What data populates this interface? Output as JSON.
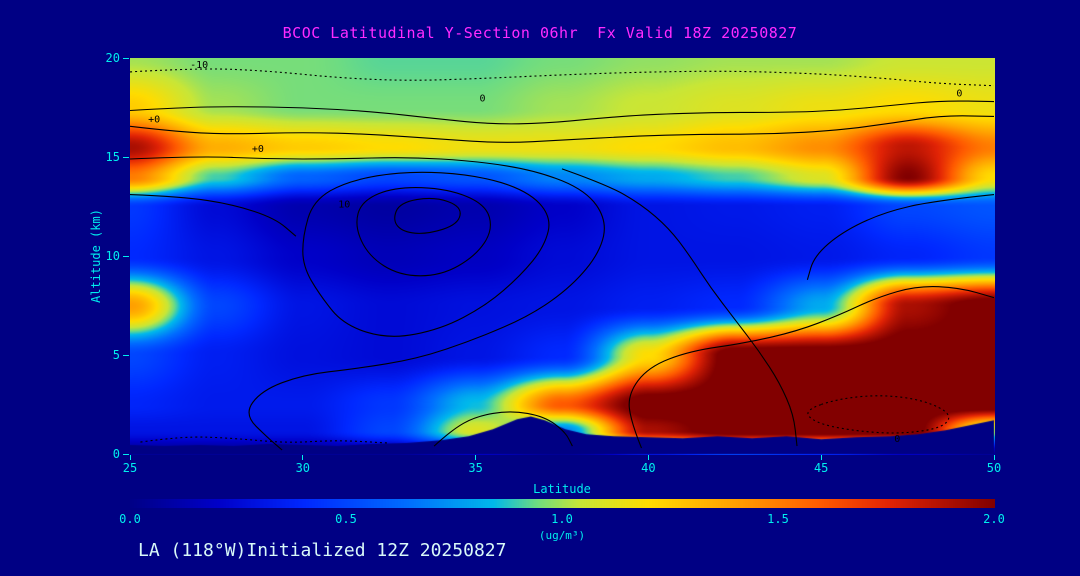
{
  "window": {
    "bg": "#000084"
  },
  "title": {
    "text": "BCOC Latitudinal Y-Section 06hr  Fx Valid 18Z 20250827",
    "color": "#ff2bff"
  },
  "footer": {
    "text": "LA (118°W)Initialized 12Z 20250827",
    "color": "#d8f8f8"
  },
  "axes": {
    "color": "#00eeee",
    "x": {
      "label": "Latitude",
      "range": [
        25,
        50
      ],
      "ticks": [
        25,
        30,
        35,
        40,
        45,
        50
      ]
    },
    "y": {
      "label": "Altitude (km)",
      "range": [
        0,
        20
      ],
      "ticks": [
        0,
        5,
        10,
        15,
        20
      ]
    }
  },
  "colorbar": {
    "range": [
      0.0,
      2.0
    ],
    "ticks": [
      0.0,
      0.5,
      1.0,
      1.5,
      2.0
    ],
    "unit": "(ug/m³)"
  },
  "chart_data": {
    "type": "heatmap",
    "title": "BCOC Latitudinal Y-Section 06hr  Fx Valid 18Z 20250827",
    "xlabel": "Latitude",
    "ylabel": "Altitude (km)",
    "xlim": [
      25,
      50
    ],
    "ylim": [
      0,
      20
    ],
    "vmax": 2.0,
    "x_lats": [
      25,
      27.5,
      30,
      32.5,
      35,
      37.5,
      40,
      42.5,
      45,
      47.5,
      50
    ],
    "y_alts": [
      0,
      1.2,
      2.5,
      5,
      7.5,
      10,
      12.5,
      14,
      15.5,
      17.5,
      20
    ],
    "values_ug_m3": [
      [
        0.05,
        0.05,
        0.05,
        0.05,
        0.2,
        0.05,
        0.3,
        0.5,
        0.4,
        0.2,
        0.05
      ],
      [
        0.3,
        0.3,
        0.3,
        0.5,
        1.1,
        0.7,
        1.9,
        2.1,
        2.1,
        2.1,
        1.0
      ],
      [
        0.38,
        0.33,
        0.33,
        0.45,
        0.85,
        1.6,
        2.1,
        2.1,
        2.1,
        2.1,
        2.1
      ],
      [
        0.5,
        0.35,
        0.28,
        0.25,
        0.3,
        0.4,
        1.2,
        2.1,
        2.1,
        2.1,
        2.1
      ],
      [
        1.4,
        0.5,
        0.3,
        0.25,
        0.28,
        0.3,
        0.35,
        0.4,
        0.8,
        1.9,
        2.1
      ],
      [
        0.4,
        0.3,
        0.2,
        0.15,
        0.18,
        0.25,
        0.3,
        0.3,
        0.32,
        0.38,
        0.45
      ],
      [
        0.45,
        0.25,
        0.12,
        0.08,
        0.12,
        0.2,
        0.3,
        0.32,
        0.35,
        0.5,
        0.55
      ],
      [
        1.5,
        0.9,
        0.6,
        0.5,
        0.55,
        0.7,
        0.8,
        0.9,
        1.1,
        2.0,
        1.2
      ],
      [
        1.9,
        1.35,
        1.25,
        1.2,
        1.15,
        1.15,
        1.2,
        1.3,
        1.45,
        1.85,
        1.5
      ],
      [
        1.25,
        1.0,
        0.95,
        0.95,
        0.95,
        1.0,
        1.05,
        1.1,
        1.15,
        1.2,
        1.15
      ],
      [
        1.0,
        0.95,
        0.95,
        0.92,
        0.92,
        0.95,
        0.98,
        1.0,
        1.0,
        1.05,
        1.05
      ]
    ],
    "colormap_stops": [
      [
        0.0,
        0,
        0,
        135
      ],
      [
        0.1,
        0,
        0,
        200
      ],
      [
        0.2,
        0,
        40,
        255
      ],
      [
        0.32,
        0,
        110,
        255
      ],
      [
        0.42,
        0,
        185,
        235
      ],
      [
        0.47,
        110,
        220,
        130
      ],
      [
        0.52,
        200,
        230,
        55
      ],
      [
        0.6,
        255,
        220,
        0
      ],
      [
        0.7,
        255,
        160,
        0
      ],
      [
        0.8,
        255,
        90,
        0
      ],
      [
        0.88,
        225,
        35,
        5
      ],
      [
        1.0,
        130,
        0,
        0
      ]
    ],
    "terrain_profile": [
      [
        25,
        0.45
      ],
      [
        26,
        0.4
      ],
      [
        27,
        0.45
      ],
      [
        28,
        0.4
      ],
      [
        29,
        0.5
      ],
      [
        30,
        0.45
      ],
      [
        31,
        0.4
      ],
      [
        32,
        0.5
      ],
      [
        33,
        0.55
      ],
      [
        34,
        0.7
      ],
      [
        34.8,
        0.9
      ],
      [
        35.5,
        1.25
      ],
      [
        36.2,
        1.75
      ],
      [
        36.6,
        1.9
      ],
      [
        37.0,
        1.7
      ],
      [
        37.6,
        1.25
      ],
      [
        38.2,
        1.0
      ],
      [
        39,
        0.9
      ],
      [
        40,
        0.85
      ],
      [
        41,
        0.8
      ],
      [
        42,
        0.9
      ],
      [
        43,
        0.8
      ],
      [
        44,
        0.9
      ],
      [
        45,
        0.75
      ],
      [
        46,
        0.85
      ],
      [
        47,
        0.9
      ],
      [
        47.8,
        1.0
      ],
      [
        48.6,
        1.2
      ],
      [
        49.3,
        1.45
      ],
      [
        50,
        1.7
      ]
    ],
    "contours": [
      {
        "style": "dotted",
        "closed": false,
        "points": [
          [
            25,
            19.3
          ],
          [
            27,
            19.5
          ],
          [
            29,
            19.35
          ],
          [
            31,
            19.0
          ],
          [
            33,
            18.85
          ],
          [
            35,
            18.95
          ],
          [
            37.5,
            19.15
          ],
          [
            40,
            19.3
          ],
          [
            42.5,
            19.35
          ],
          [
            45,
            19.2
          ],
          [
            47,
            18.95
          ],
          [
            48.5,
            18.7
          ],
          [
            50,
            18.6
          ]
        ]
      },
      {
        "style": "solid",
        "closed": false,
        "points": [
          [
            25,
            17.35
          ],
          [
            26.5,
            17.5
          ],
          [
            28,
            17.55
          ],
          [
            30,
            17.5
          ],
          [
            32,
            17.3
          ],
          [
            33.8,
            16.95
          ],
          [
            35.5,
            16.65
          ],
          [
            37,
            16.7
          ],
          [
            38.5,
            16.95
          ],
          [
            40,
            17.15
          ],
          [
            42,
            17.25
          ],
          [
            44,
            17.25
          ],
          [
            45.5,
            17.35
          ],
          [
            47,
            17.6
          ],
          [
            48.5,
            17.85
          ],
          [
            50,
            17.8
          ]
        ]
      },
      {
        "style": "solid",
        "closed": false,
        "points": [
          [
            25,
            16.55
          ],
          [
            26.5,
            16.25
          ],
          [
            28,
            16.15
          ],
          [
            30,
            16.25
          ],
          [
            32,
            16.15
          ],
          [
            34,
            15.9
          ],
          [
            35.8,
            15.7
          ],
          [
            37.5,
            15.85
          ],
          [
            39.5,
            16.05
          ],
          [
            41.5,
            16.15
          ],
          [
            43.5,
            16.15
          ],
          [
            45.5,
            16.35
          ],
          [
            47,
            16.7
          ],
          [
            48.5,
            17.1
          ],
          [
            50,
            17.05
          ]
        ]
      },
      {
        "style": "solid",
        "closed": false,
        "points": [
          [
            25,
            14.9
          ],
          [
            27,
            15.05
          ],
          [
            29,
            14.9
          ],
          [
            31,
            14.9
          ],
          [
            33,
            15.0
          ],
          [
            35,
            14.8
          ],
          [
            36.8,
            14.3
          ],
          [
            38.2,
            13.3
          ],
          [
            38.8,
            11.8
          ],
          [
            38.6,
            10.2
          ],
          [
            37.8,
            8.5
          ],
          [
            36.6,
            7.0
          ],
          [
            35,
            5.8
          ],
          [
            33.3,
            4.8
          ],
          [
            31.5,
            4.3
          ],
          [
            30,
            4.0
          ],
          [
            28.8,
            3.2
          ],
          [
            28.3,
            2.0
          ],
          [
            29.0,
            0.8
          ],
          [
            29.4,
            0.2
          ]
        ]
      },
      {
        "style": "solid",
        "closed": true,
        "points": [
          [
            30,
            11
          ],
          [
            30.3,
            12.8
          ],
          [
            31.3,
            13.8
          ],
          [
            33,
            14.3
          ],
          [
            35,
            14.1
          ],
          [
            36.5,
            13.3
          ],
          [
            37.2,
            12.0
          ],
          [
            37.0,
            10.5
          ],
          [
            36.3,
            9.0
          ],
          [
            35.3,
            7.5
          ],
          [
            34,
            6.3
          ],
          [
            32.5,
            5.8
          ],
          [
            31.2,
            6.5
          ],
          [
            30.5,
            8.0
          ],
          [
            30,
            9.5
          ]
        ]
      },
      {
        "style": "solid",
        "closed": true,
        "points": [
          [
            31.5,
            11.5
          ],
          [
            31.7,
            12.8
          ],
          [
            32.7,
            13.5
          ],
          [
            34.2,
            13.4
          ],
          [
            35.3,
            12.6
          ],
          [
            35.5,
            11.3
          ],
          [
            35,
            10.0
          ],
          [
            34,
            9.0
          ],
          [
            32.8,
            9.0
          ],
          [
            31.9,
            10.0
          ]
        ]
      },
      {
        "style": "solid",
        "closed": true,
        "points": [
          [
            32.6,
            11.8
          ],
          [
            32.8,
            12.7
          ],
          [
            33.8,
            13.0
          ],
          [
            34.6,
            12.5
          ],
          [
            34.5,
            11.6
          ],
          [
            33.6,
            11.1
          ],
          [
            32.9,
            11.2
          ]
        ]
      },
      {
        "style": "solid",
        "closed": false,
        "points": [
          [
            37.5,
            14.4
          ],
          [
            38.8,
            13.6
          ],
          [
            39.8,
            12.6
          ],
          [
            40.6,
            11.4
          ],
          [
            41.2,
            10.0
          ],
          [
            41.8,
            8.4
          ],
          [
            42.5,
            6.8
          ],
          [
            43.2,
            5.2
          ],
          [
            43.8,
            3.6
          ],
          [
            44.2,
            2.0
          ],
          [
            44.3,
            0.4
          ]
        ]
      },
      {
        "style": "solid",
        "closed": false,
        "points": [
          [
            50,
            13.1
          ],
          [
            48.3,
            12.8
          ],
          [
            46.8,
            12.2
          ],
          [
            45.6,
            11.2
          ],
          [
            44.8,
            10.0
          ],
          [
            44.6,
            8.8
          ]
        ]
      },
      {
        "style": "solid",
        "closed": false,
        "points": [
          [
            39.8,
            0.3
          ],
          [
            39.5,
            1.6
          ],
          [
            39.4,
            3.0
          ],
          [
            40.0,
            4.4
          ],
          [
            41.2,
            5.2
          ],
          [
            42.8,
            5.6
          ],
          [
            44.3,
            6.2
          ],
          [
            45.5,
            7.0
          ],
          [
            46.6,
            7.9
          ],
          [
            47.8,
            8.5
          ],
          [
            49.0,
            8.4
          ],
          [
            50,
            7.9
          ]
        ]
      },
      {
        "style": "dotted",
        "closed": true,
        "points": [
          [
            44.5,
            2.2
          ],
          [
            45.5,
            2.8
          ],
          [
            46.8,
            3.0
          ],
          [
            48,
            2.7
          ],
          [
            48.8,
            2.0
          ],
          [
            48.5,
            1.3
          ],
          [
            47.2,
            1.0
          ],
          [
            45.8,
            1.2
          ],
          [
            44.8,
            1.6
          ]
        ]
      },
      {
        "style": "dotted",
        "closed": false,
        "points": [
          [
            25.3,
            0.6
          ],
          [
            26.5,
            0.9
          ],
          [
            28,
            0.8
          ],
          [
            29.5,
            0.55
          ],
          [
            31,
            0.7
          ],
          [
            32.5,
            0.55
          ]
        ]
      },
      {
        "style": "solid",
        "closed": false,
        "points": [
          [
            33.8,
            0.4
          ],
          [
            34.3,
            1.2
          ],
          [
            35.0,
            1.9
          ],
          [
            36.0,
            2.2
          ],
          [
            37.0,
            1.9
          ],
          [
            37.6,
            1.1
          ],
          [
            37.8,
            0.4
          ]
        ]
      },
      {
        "style": "solid",
        "closed": false,
        "points": [
          [
            25,
            13.1
          ],
          [
            26.5,
            13.0
          ],
          [
            28,
            12.6
          ],
          [
            29.2,
            11.9
          ],
          [
            29.8,
            11.0
          ]
        ]
      }
    ],
    "contour_labels": [
      {
        "text": "-10",
        "lat": 27.0,
        "alt": 19.65
      },
      {
        "text": "0",
        "lat": 35.2,
        "alt": 17.95
      },
      {
        "text": "0",
        "lat": 49.0,
        "alt": 18.2
      },
      {
        "text": "+0",
        "lat": 25.7,
        "alt": 16.9
      },
      {
        "text": "+0",
        "lat": 28.7,
        "alt": 15.4
      },
      {
        "text": "10",
        "lat": 31.2,
        "alt": 12.6
      },
      {
        "text": "0",
        "lat": 47.2,
        "alt": 0.75
      }
    ]
  }
}
